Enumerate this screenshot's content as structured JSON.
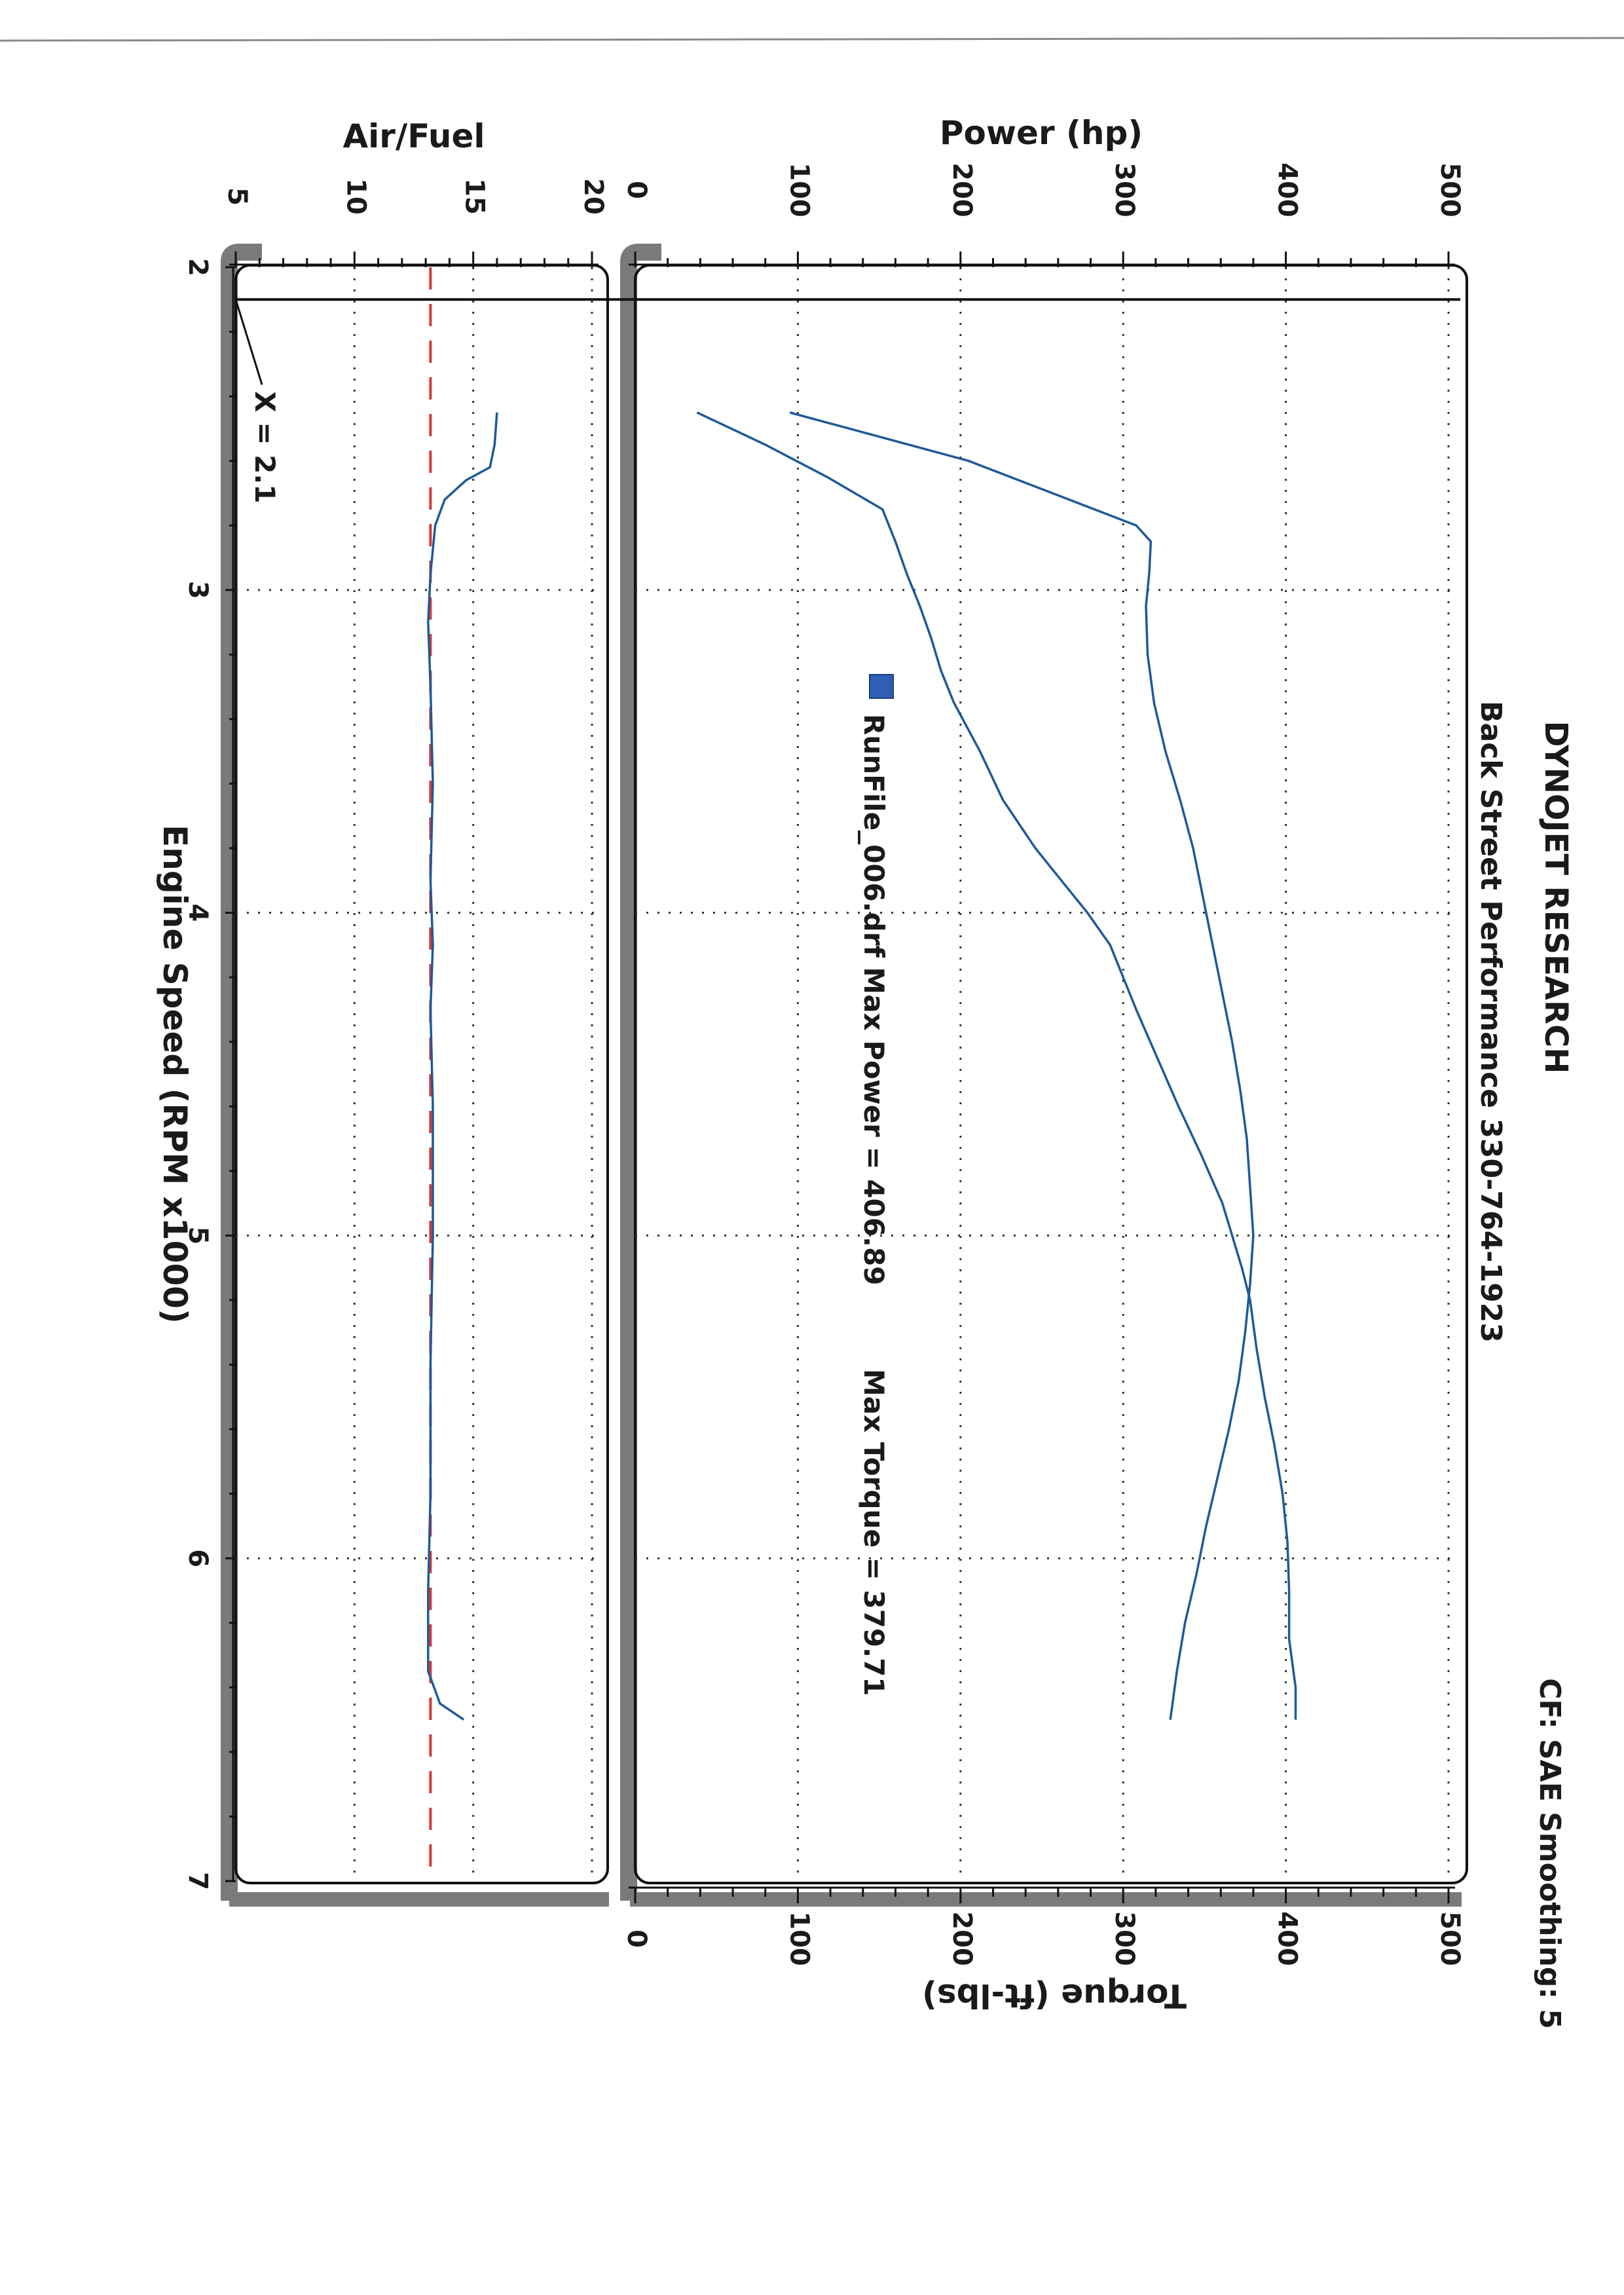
{
  "header": {
    "company": "DYNOJET RESEARCH",
    "shop": "Back Street Performance 330-764-1923",
    "settings": "CF: SAE  Smoothing: 5"
  },
  "legend": {
    "run_label": "RunFile_006.drf Max Power = 406.89",
    "max_torque_label": "Max Torque = 379.71",
    "swatch_color": "#2f5fb3"
  },
  "cursor": {
    "label": "X = 2.1",
    "rpm": 2.1
  },
  "colors": {
    "curve": "#1f5a96",
    "afr_target": "#d23b3b",
    "frame_shadow": "#7a7a7a"
  },
  "chart_data": [
    {
      "type": "line",
      "title": "DYNOJET RESEARCH",
      "xlabel": "Engine Speed (RPM x1000)",
      "ylabel": "Power (hp)",
      "y2label": "Torque (ft-lbs)",
      "xlim": [
        2,
        7
      ],
      "ylim": [
        0,
        500
      ],
      "y2lim": [
        0,
        500
      ],
      "x_ticks": [
        "2",
        "3",
        "4",
        "5",
        "6",
        "7"
      ],
      "y_ticks": [
        "0",
        "100",
        "200",
        "300",
        "400",
        "500"
      ],
      "y2_ticks": [
        "0",
        "100",
        "200",
        "300",
        "400",
        "500"
      ],
      "grid": true,
      "series": [
        {
          "axis": "power",
          "x": [
            2.45,
            2.55,
            2.65,
            2.75,
            2.85,
            2.95,
            3.05,
            3.15,
            3.25,
            3.35,
            3.5,
            3.65,
            3.8,
            3.9,
            4.0,
            4.1,
            4.2,
            4.3,
            4.45,
            4.6,
            4.75,
            4.9,
            5.0,
            5.1,
            5.2,
            5.35,
            5.5,
            5.65,
            5.8,
            5.95,
            6.1,
            6.25,
            6.4,
            6.5
          ],
          "y": [
            38,
            80,
            118,
            152,
            160,
            167,
            175,
            182,
            188,
            196,
            212,
            226,
            246,
            262,
            278,
            292,
            300,
            308,
            321,
            334,
            348,
            361,
            367,
            373,
            378,
            382,
            387,
            393,
            398,
            401,
            402,
            402,
            406,
            406
          ]
        },
        {
          "axis": "torque",
          "x": [
            2.45,
            2.6,
            2.8,
            2.85,
            2.95,
            3.05,
            3.2,
            3.35,
            3.5,
            3.65,
            3.8,
            3.95,
            4.1,
            4.25,
            4.4,
            4.55,
            4.7,
            4.85,
            5.0,
            5.15,
            5.3,
            5.45,
            5.6,
            5.75,
            5.9,
            6.05,
            6.2,
            6.35,
            6.5
          ],
          "y": [
            95,
            205,
            308,
            317,
            316,
            314,
            315,
            319,
            326,
            335,
            343,
            349,
            355,
            361,
            367,
            372,
            376,
            378,
            380,
            378,
            375,
            371,
            365,
            358,
            351,
            345,
            338,
            333,
            329
          ]
        }
      ]
    },
    {
      "type": "line",
      "xlabel": "Engine Speed (RPM x1000)",
      "ylabel": "Air/Fuel",
      "xlim": [
        2,
        7
      ],
      "ylim": [
        5,
        20
      ],
      "x_ticks": [
        "2",
        "3",
        "4",
        "5",
        "6",
        "7"
      ],
      "y_ticks": [
        "5",
        "10",
        "15",
        "20"
      ],
      "grid": true,
      "reference_line": 13.2,
      "series": [
        {
          "axis": "afr",
          "x": [
            2.45,
            2.55,
            2.62,
            2.66,
            2.72,
            2.8,
            2.95,
            3.1,
            3.3,
            3.6,
            3.9,
            4.1,
            4.3,
            4.6,
            5.0,
            5.4,
            5.8,
            6.1,
            6.35,
            6.45,
            6.5
          ],
          "y": [
            16.0,
            15.9,
            15.7,
            14.7,
            13.8,
            13.4,
            13.2,
            13.1,
            13.2,
            13.3,
            13.2,
            13.3,
            13.2,
            13.3,
            13.3,
            13.2,
            13.2,
            13.1,
            13.1,
            13.6,
            14.6
          ]
        }
      ]
    }
  ]
}
